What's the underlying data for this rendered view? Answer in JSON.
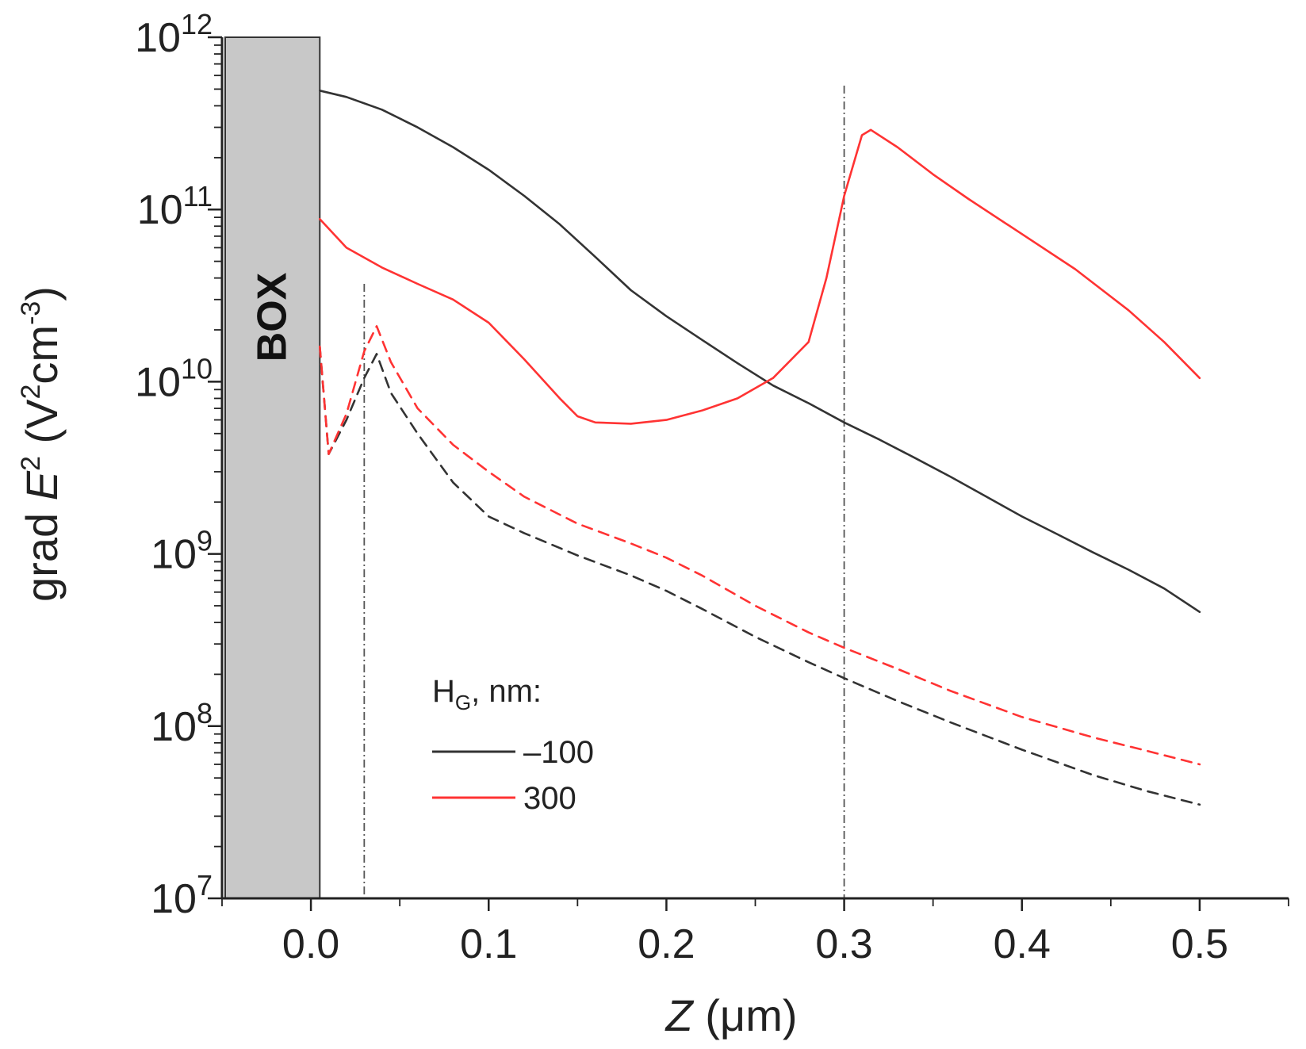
{
  "chart_data": {
    "type": "line",
    "title": "",
    "xlabel": "Z (μm)",
    "xlabel_var": "Z",
    "xlabel_unit": " (μm)",
    "ylabel": "grad E² (V²cm⁻³)",
    "ylabel_parts": {
      "pre": "grad ",
      "var": "E",
      "sup1": "2",
      "mid": " (V",
      "sup2": "2",
      "mid2": "cm",
      "sup3": "-3",
      "post": ")"
    },
    "xlim": [
      -0.05,
      0.55
    ],
    "ylim": [
      10000000.0,
      1000000000000.0
    ],
    "yscale": "log",
    "x_ticks": [
      0.0,
      0.1,
      0.2,
      0.3,
      0.4,
      0.5
    ],
    "x_tick_labels": [
      "0.0",
      "0.1",
      "0.2",
      "0.3",
      "0.4",
      "0.5"
    ],
    "y_ticks": [
      {
        "base": "10",
        "exp": "7",
        "value": 10000000.0
      },
      {
        "base": "10",
        "exp": "8",
        "value": 100000000.0
      },
      {
        "base": "10",
        "exp": "9",
        "value": 1000000000.0
      },
      {
        "base": "10",
        "exp": "10",
        "value": 10000000000.0
      },
      {
        "base": "10",
        "exp": "11",
        "value": 100000000000.0
      },
      {
        "base": "10",
        "exp": "12",
        "value": 1000000000000.0
      }
    ],
    "box_region": {
      "label": "BOX",
      "x_range": [
        -0.05,
        0.005
      ],
      "color": "#c8c8c8"
    },
    "vertical_lines": [
      0.03,
      0.3
    ],
    "legend": {
      "title_main": "H",
      "title_sub": "G",
      "title_rest": ", nm:",
      "entries": [
        {
          "label": "–100",
          "color": "#333333"
        },
        {
          "label": "300",
          "color": "#ff3333"
        }
      ]
    },
    "series": [
      {
        "name": "–100 solid",
        "color": "#333333",
        "dash": false,
        "x": [
          0.005,
          0.02,
          0.04,
          0.06,
          0.08,
          0.1,
          0.12,
          0.14,
          0.16,
          0.18,
          0.2,
          0.22,
          0.24,
          0.26,
          0.28,
          0.3,
          0.32,
          0.34,
          0.36,
          0.38,
          0.4,
          0.42,
          0.44,
          0.46,
          0.48,
          0.5
        ],
        "y": [
          490000000000.0,
          450000000000.0,
          380000000000.0,
          300000000000.0,
          230000000000.0,
          170000000000.0,
          120000000000.0,
          82000000000.0,
          53000000000.0,
          34000000000.0,
          24000000000.0,
          17500000000.0,
          12800000000.0,
          9500000000.0,
          7500000000.0,
          5800000000.0,
          4600000000.0,
          3600000000.0,
          2800000000.0,
          2150000000.0,
          1650000000.0,
          1300000000.0,
          1020000000.0,
          810000000.0,
          630000000.0,
          460000000.0
        ]
      },
      {
        "name": "300 solid",
        "color": "#ff3333",
        "dash": false,
        "x": [
          0.005,
          0.02,
          0.04,
          0.06,
          0.08,
          0.1,
          0.12,
          0.14,
          0.15,
          0.16,
          0.18,
          0.2,
          0.22,
          0.24,
          0.26,
          0.28,
          0.29,
          0.3,
          0.31,
          0.315,
          0.33,
          0.35,
          0.37,
          0.4,
          0.43,
          0.46,
          0.48,
          0.5
        ],
        "y": [
          88000000000.0,
          60000000000.0,
          46000000000.0,
          37000000000.0,
          30000000000.0,
          22000000000.0,
          13500000000.0,
          8000000000.0,
          6300000000.0,
          5800000000.0,
          5700000000.0,
          6000000000.0,
          6800000000.0,
          8000000000.0,
          10500000000.0,
          17000000000.0,
          40000000000.0,
          120000000000.0,
          270000000000.0,
          290000000000.0,
          230000000000.0,
          160000000000.0,
          115000000000.0,
          72000000000.0,
          45000000000.0,
          26000000000.0,
          17000000000.0,
          10500000000.0
        ]
      },
      {
        "name": "–100 dashed",
        "color": "#333333",
        "dash": true,
        "x": [
          0.005,
          0.01,
          0.02,
          0.03,
          0.037,
          0.045,
          0.06,
          0.08,
          0.1,
          0.12,
          0.15,
          0.18,
          0.2,
          0.22,
          0.25,
          0.28,
          0.3,
          0.33,
          0.36,
          0.4,
          0.44,
          0.47,
          0.5
        ],
        "y": [
          16000000000.0,
          3800000000.0,
          6000000000.0,
          10500000000.0,
          14500000000.0,
          8600000000.0,
          5000000000.0,
          2600000000.0,
          1650000000.0,
          1320000000.0,
          980000000.0,
          750000000.0,
          610000000.0,
          480000000.0,
          330000000.0,
          235000000.0,
          190000000.0,
          140000000.0,
          105000000.0,
          73000000.0,
          52000000.0,
          42000000.0,
          35000000.0
        ]
      },
      {
        "name": "300 dashed",
        "color": "#ff3333",
        "dash": true,
        "x": [
          0.005,
          0.01,
          0.02,
          0.03,
          0.037,
          0.045,
          0.06,
          0.08,
          0.1,
          0.12,
          0.15,
          0.18,
          0.2,
          0.22,
          0.25,
          0.28,
          0.3,
          0.33,
          0.36,
          0.4,
          0.44,
          0.47,
          0.5
        ],
        "y": [
          16000000000.0,
          3800000000.0,
          6500000000.0,
          15000000000.0,
          21000000000.0,
          13000000000.0,
          7000000000.0,
          4300000000.0,
          3000000000.0,
          2150000000.0,
          1500000000.0,
          1150000000.0,
          950000000.0,
          750000000.0,
          500000000.0,
          350000000.0,
          285000000.0,
          215000000.0,
          160000000.0,
          113000000.0,
          86000000.0,
          72000000.0,
          60000000.0
        ]
      }
    ]
  }
}
